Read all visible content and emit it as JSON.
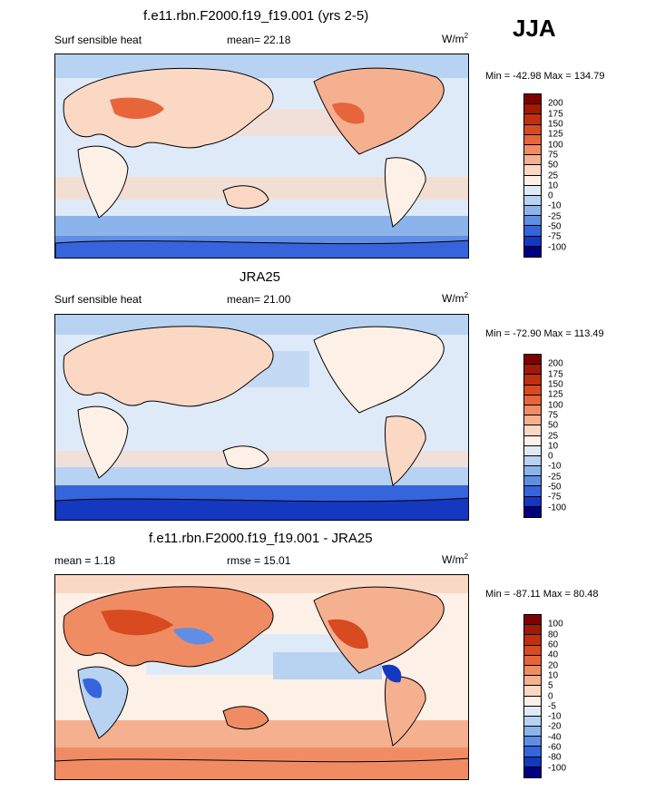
{
  "season": "JJA",
  "panels": [
    {
      "title": "f.e11.rbn.F2000.f19_f19.001 (yrs 2-5)",
      "left_label": "Surf sensible heat",
      "mid_label": "mean=  22.18",
      "units_base": "W/m",
      "units_sup": "2",
      "minmax": "Min = -42.98 Max = 134.79",
      "colorbar": {
        "labels": [
          "200",
          "175",
          "150",
          "125",
          "100",
          "75",
          "50",
          "25",
          "10",
          "0",
          "-10",
          "-25",
          "-50",
          "-75",
          "-100"
        ],
        "colors": [
          "#7f0000",
          "#a01a05",
          "#c03010",
          "#d84a20",
          "#e8643a",
          "#f08c64",
          "#f5b090",
          "#fbd8c4",
          "#fdf0e6",
          "#dfeaf8",
          "#b8d2f2",
          "#8cb4ec",
          "#5f8ee4",
          "#3564dc",
          "#1438c0",
          "#000080"
        ]
      }
    },
    {
      "title": "JRA25",
      "left_label": "Surf sensible heat",
      "mid_label": "mean=  21.00",
      "units_base": "W/m",
      "units_sup": "2",
      "minmax": "Min = -72.90 Max = 113.49",
      "colorbar": {
        "labels": [
          "200",
          "175",
          "150",
          "125",
          "100",
          "75",
          "50",
          "25",
          "10",
          "0",
          "-10",
          "-25",
          "-50",
          "-75",
          "-100"
        ],
        "colors": [
          "#7f0000",
          "#a01a05",
          "#c03010",
          "#d84a20",
          "#e8643a",
          "#f08c64",
          "#f5b090",
          "#fbd8c4",
          "#fdf0e6",
          "#dfeaf8",
          "#b8d2f2",
          "#8cb4ec",
          "#5f8ee4",
          "#3564dc",
          "#1438c0",
          "#000080"
        ]
      }
    },
    {
      "title": "f.e11.rbn.F2000.f19_f19.001 - JRA25",
      "left_label": "mean =   1.18",
      "mid_label": "rmse =  15.01",
      "units_base": "W/m",
      "units_sup": "2",
      "minmax": "Min = -87.11 Max =  80.48",
      "colorbar": {
        "labels": [
          "100",
          "80",
          "60",
          "40",
          "20",
          "10",
          "5",
          "0",
          "-5",
          "-10",
          "-20",
          "-40",
          "-60",
          "-80",
          "-100"
        ],
        "colors": [
          "#7f0000",
          "#a01a05",
          "#c03010",
          "#d84a20",
          "#e8643a",
          "#f08c64",
          "#f5b090",
          "#fbd8c4",
          "#fdf0e6",
          "#dfeaf8",
          "#b8d2f2",
          "#8cb4ec",
          "#5f8ee4",
          "#3564dc",
          "#1438c0",
          "#000080"
        ]
      }
    }
  ],
  "chart_data": [
    {
      "type": "heatmap",
      "title": "f.e11.rbn.F2000.f19_f19.001 (yrs 2-5)",
      "variable": "Surf sensible heat",
      "units": "W/m2",
      "mean": 22.18,
      "min": -42.98,
      "max": 134.79,
      "contour_levels": [
        -100,
        -75,
        -50,
        -25,
        -10,
        0,
        10,
        25,
        50,
        75,
        100,
        125,
        150,
        175,
        200
      ]
    },
    {
      "type": "heatmap",
      "title": "JRA25",
      "variable": "Surf sensible heat",
      "units": "W/m2",
      "mean": 21.0,
      "min": -72.9,
      "max": 113.49,
      "contour_levels": [
        -100,
        -75,
        -50,
        -25,
        -10,
        0,
        10,
        25,
        50,
        75,
        100,
        125,
        150,
        175,
        200
      ]
    },
    {
      "type": "heatmap",
      "title": "f.e11.rbn.F2000.f19_f19.001 - JRA25",
      "units": "W/m2",
      "mean": 1.18,
      "rmse": 15.01,
      "min": -87.11,
      "max": 80.48,
      "contour_levels": [
        -100,
        -80,
        -60,
        -40,
        -20,
        -10,
        -5,
        0,
        5,
        10,
        20,
        40,
        60,
        80,
        100
      ]
    }
  ]
}
